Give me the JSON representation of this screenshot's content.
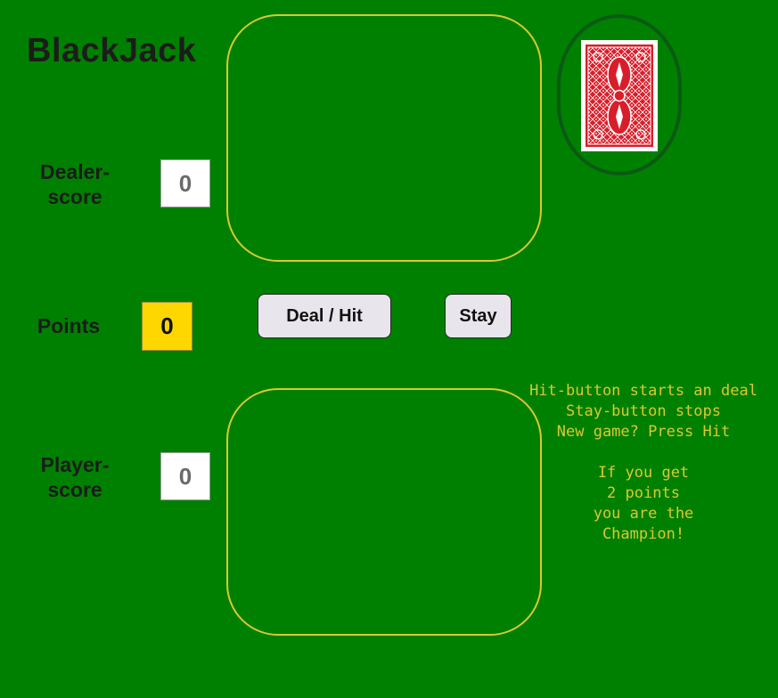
{
  "title": "BlackJack",
  "dealer": {
    "label": "Dealer-\nscore",
    "label_line1": "Dealer-",
    "label_line2": "score",
    "score": "0"
  },
  "player": {
    "label_line1": "Player-",
    "label_line2": "score",
    "score": "0"
  },
  "points": {
    "label": "Points",
    "value": "0"
  },
  "buttons": {
    "deal_hit": "Deal / Hit",
    "stay": "Stay"
  },
  "instructions": [
    "Hit-button starts an deal",
    "Stay-button stops",
    "New game? Press Hit",
    "",
    "If you get",
    "2 points",
    "you are the",
    "Champion!"
  ],
  "deck": {
    "icon": "card-back-icon"
  },
  "colors": {
    "table": "#008000",
    "area_border": "#d9c832",
    "points_box": "#ffd700",
    "deck_ring": "#0a5a14",
    "card_back": "#d81e2a",
    "instructions_text": "#d9c832"
  }
}
